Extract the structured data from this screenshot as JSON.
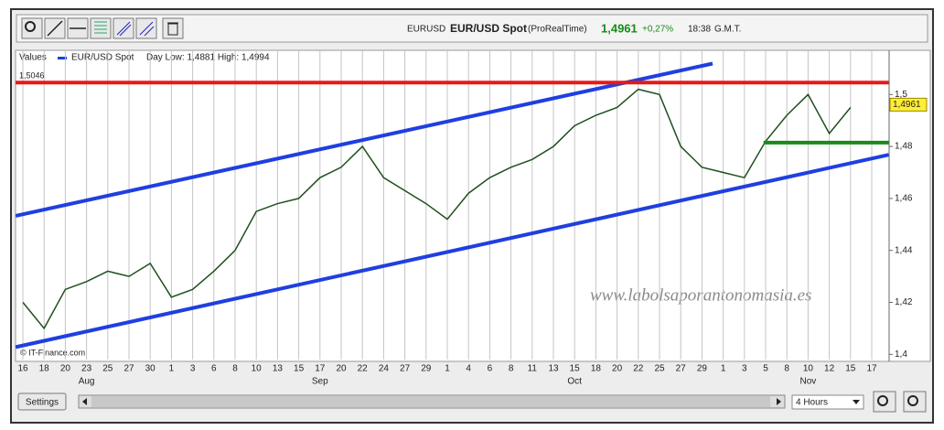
{
  "chart_data": {
    "type": "line",
    "symbol": "EURUSD",
    "title": "EUR/USD Spot",
    "source": "(ProRealTime)",
    "last_price": {
      "value": 1.4961,
      "label": "1,4961"
    },
    "change": "+0,27%",
    "time": "18:38",
    "timezone": "G.M.T.",
    "legend_label": "Values",
    "day_range": "Day Low: 1,4881 High: 1,4994",
    "watermark": "www.labolsaporantonomasia.es",
    "copyright": "© IT-Finance.com",
    "categories": [
      "16",
      "18",
      "20",
      "23",
      "25",
      "27",
      "30",
      "1",
      "3",
      "6",
      "8",
      "10",
      "13",
      "15",
      "17",
      "20",
      "22",
      "24",
      "27",
      "29",
      "1",
      "4",
      "6",
      "8",
      "11",
      "13",
      "15",
      "18",
      "20",
      "22",
      "25",
      "27",
      "29",
      "1",
      "3",
      "5",
      "8",
      "10",
      "12",
      "15",
      "17"
    ],
    "month_labels": [
      null,
      null,
      null,
      "Aug",
      null,
      null,
      null,
      null,
      null,
      null,
      null,
      null,
      null,
      null,
      "Sep",
      null,
      null,
      null,
      null,
      null,
      null,
      null,
      null,
      null,
      null,
      null,
      "Oct",
      null,
      null,
      null,
      null,
      null,
      null,
      null,
      null,
      null,
      null,
      "Nov",
      null,
      null,
      null
    ],
    "series": [
      {
        "name": "EUR/USD Spot",
        "color": "#1f4f1f",
        "values": [
          1.42,
          1.41,
          1.425,
          1.428,
          1.432,
          1.43,
          1.435,
          1.422,
          1.425,
          1.432,
          1.44,
          1.455,
          1.458,
          1.46,
          1.468,
          1.472,
          1.48,
          1.468,
          1.463,
          1.458,
          1.452,
          1.462,
          1.468,
          1.472,
          1.475,
          1.48,
          1.488,
          1.492,
          1.495,
          1.502,
          1.5,
          1.48,
          1.472,
          1.47,
          1.468,
          1.482,
          1.492,
          1.5,
          1.485,
          1.495,
          null
        ]
      }
    ],
    "trendlines": [
      {
        "color": "#1f3fe0",
        "x": [
          -0.34,
          32.5
        ],
        "values": [
          1.4533,
          1.5119
        ]
      },
      {
        "color": "#1f3fe0",
        "x": [
          -0.34,
          40.8
        ],
        "values": [
          1.4028,
          1.4768
        ]
      },
      {
        "color": "#e81818",
        "x": [
          -0.34,
          40.8
        ],
        "values": [
          1.5046,
          1.5046
        ],
        "label": "1,5046"
      },
      {
        "color": "#1a8a1a",
        "x": [
          34.9,
          40.8
        ],
        "values": [
          1.4815,
          1.4815
        ]
      }
    ],
    "ylim": [
      1.398,
      1.517
    ],
    "yticks": [
      {
        "value": 1.4,
        "label": "1,4"
      },
      {
        "value": 1.42,
        "label": "1,42"
      },
      {
        "value": 1.44,
        "label": "1,44"
      },
      {
        "value": 1.46,
        "label": "1,46"
      },
      {
        "value": 1.48,
        "label": "1,48"
      },
      {
        "value": 1.5,
        "label": "1,5"
      }
    ],
    "grid": true
  },
  "ui": {
    "settings": "Settings",
    "interval": "4 Hours"
  }
}
